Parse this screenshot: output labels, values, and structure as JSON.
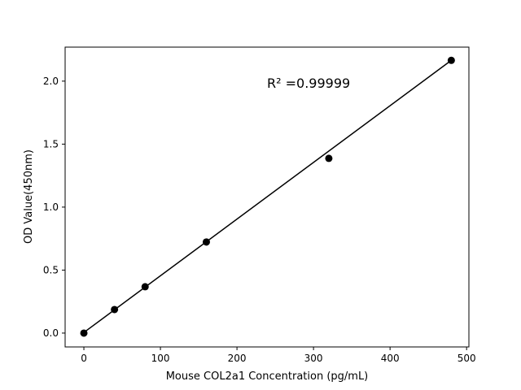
{
  "chart_data": {
    "type": "scatter",
    "title": "",
    "xlabel": "Mouse COL2a1 Concentration (pg/mL)",
    "ylabel": "OD Value(450nm)",
    "xlim": [
      -24.5,
      503
    ],
    "ylim": [
      -0.11,
      2.27
    ],
    "xticks": [
      0,
      100,
      200,
      300,
      400,
      500
    ],
    "yticks": [
      0.0,
      0.5,
      1.0,
      1.5,
      2.0
    ],
    "xtick_labels": [
      "0",
      "100",
      "200",
      "300",
      "400",
      "500"
    ],
    "ytick_labels": [
      "0.0",
      "0.5",
      "1.0",
      "1.5",
      "2.0"
    ],
    "grid": false,
    "points": {
      "x": [
        0,
        40,
        80,
        160,
        320,
        480
      ],
      "y": [
        0.0,
        0.187,
        0.368,
        0.723,
        1.387,
        2.165
      ],
      "color": "#000000"
    },
    "fit_line": {
      "x": [
        0,
        480
      ],
      "y": [
        0.005,
        2.165
      ],
      "color": "#000000"
    },
    "annotation": "R² =0.99999"
  }
}
